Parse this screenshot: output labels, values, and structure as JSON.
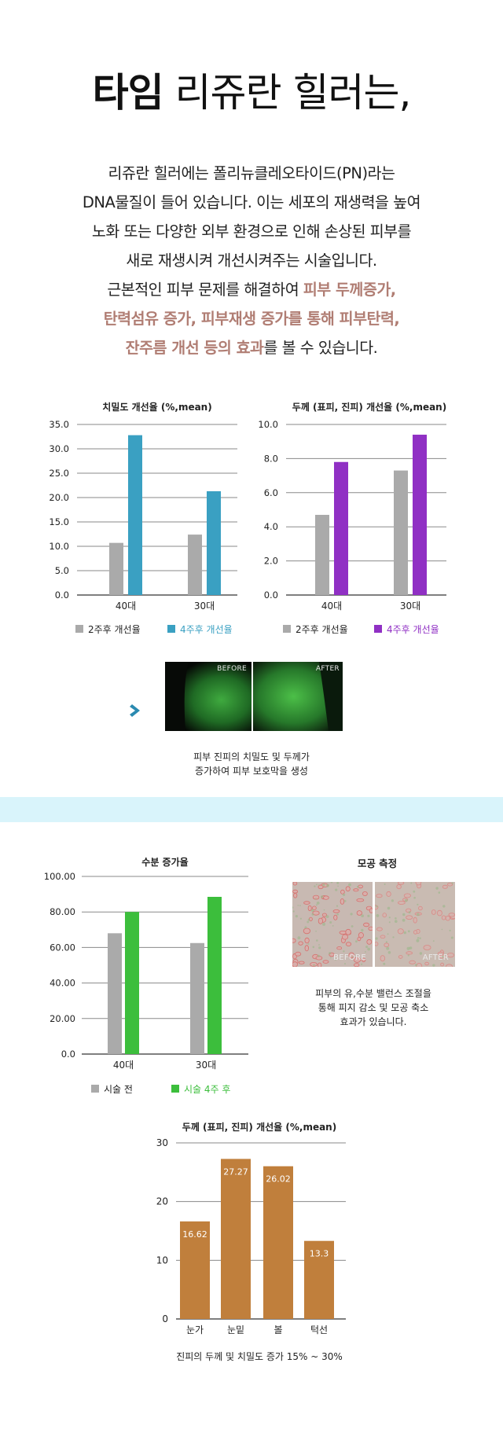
{
  "headline": {
    "bold": "타임",
    "rest": " 리쥬란 힐러는,"
  },
  "intro": {
    "line1": "리쥬란 힐러에는 폴리뉴클레오타이드(PN)라는",
    "line2": "DNA물질이 들어 있습니다. 이는 세포의 재생력을 높여",
    "line3": "노화 또는 다양한 외부 환경으로 인해 손상된 피부를",
    "line4": "새로 재생시켜 개선시켜주는 시술입니다.",
    "line5_a": "근본적인 피부 문제를 해결하여 ",
    "line5_hl": "피부 두께증가,",
    "line6_hl": "탄력섬유 증가, 피부재생 증가를 통해 피부탄력,",
    "line7_hl": "잔주름 개선 등의 효과",
    "line7_b": "를 볼 수 있습니다."
  },
  "colors": {
    "gray": "#aaaaaa",
    "teal": "#3aa0c2",
    "purple": "#9030c4",
    "green": "#3cbe3c",
    "orange": "#c07f3c",
    "highlight": "#b07d73",
    "band": "#d9f4fb",
    "arrow": "#2a8ab0"
  },
  "arrow_icon": "chevron-right-icon",
  "micrograph": {
    "before": "BEFORE",
    "after": "AFTER",
    "caption_line1": "피부 진피의 치밀도 및 두께가",
    "caption_line2": "증가하여 피부 보호막을 생성"
  },
  "pore": {
    "title": "모공 측정",
    "before": "BEFORE",
    "after": "AFTER",
    "caption_line1": "피부의 유,수분 밸런스 조절을",
    "caption_line2": "통해 피지 감소 및 모공 축소",
    "caption_line3": "효과가 있습니다."
  },
  "chart_data": [
    {
      "id": "density",
      "type": "bar",
      "title": "치밀도 개선율 (%,mean)",
      "categories": [
        "40대",
        "30대"
      ],
      "series": [
        {
          "name": "2주후 개선율",
          "values": [
            10.7,
            12.4
          ],
          "color": "#aaaaaa"
        },
        {
          "name": "4주후 개선율",
          "values": [
            32.8,
            21.3
          ],
          "color": "#3aa0c2"
        }
      ],
      "ylim": [
        0,
        35
      ],
      "yticks": [
        "0.0",
        "5.0",
        "10.0",
        "15.0",
        "20.0",
        "25.0",
        "30.0",
        "35.0"
      ],
      "grid": true,
      "legend": "bottom"
    },
    {
      "id": "thickness",
      "type": "bar",
      "title": "두께 (표피, 진피) 개선율 (%,mean)",
      "categories": [
        "40대",
        "30대"
      ],
      "series": [
        {
          "name": "2주후 개선율",
          "values": [
            4.7,
            7.3
          ],
          "color": "#aaaaaa"
        },
        {
          "name": "4주후 개선율",
          "values": [
            7.8,
            9.4
          ],
          "color": "#9030c4"
        }
      ],
      "ylim": [
        0,
        10
      ],
      "yticks": [
        "0.0",
        "2.0",
        "4.0",
        "6.0",
        "8.0",
        "10.0"
      ],
      "grid": true,
      "legend": "bottom"
    },
    {
      "id": "moisture",
      "type": "bar",
      "title": "수분 증가율",
      "categories": [
        "40대",
        "30대"
      ],
      "series": [
        {
          "name": "시술 전",
          "values": [
            68,
            62.5
          ],
          "color": "#aaaaaa"
        },
        {
          "name": "시술 4주 후",
          "values": [
            80,
            88.5
          ],
          "color": "#3cbe3c"
        }
      ],
      "ylim": [
        0,
        100
      ],
      "yticks": [
        "0.0",
        "20.00",
        "40.00",
        "60.00",
        "80.00",
        "100.00"
      ],
      "grid": true,
      "legend": "bottom"
    },
    {
      "id": "region",
      "type": "bar",
      "title": "두께 (표피, 진피) 개선율 (%,mean)",
      "categories": [
        "눈가",
        "눈밑",
        "볼",
        "턱선"
      ],
      "values": [
        16.62,
        27.27,
        26.02,
        13.3
      ],
      "value_labels": [
        "16.62",
        "27.27",
        "26.02",
        "13.3"
      ],
      "ylim": [
        0,
        30
      ],
      "yticks": [
        "0",
        "10",
        "20",
        "30"
      ],
      "grid": true,
      "footnote": "진피의 두께 및 치밀도 증가 15% ~ 30%"
    }
  ]
}
